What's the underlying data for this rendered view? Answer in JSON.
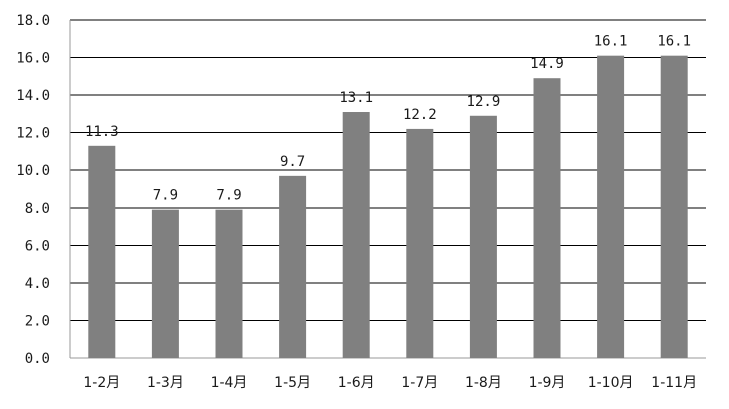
{
  "chart_data": {
    "type": "bar",
    "categories": [
      "1-2月",
      "1-3月",
      "1-4月",
      "1-5月",
      "1-6月",
      "1-7月",
      "1-8月",
      "1-9月",
      "1-10月",
      "1-11月"
    ],
    "values": [
      11.3,
      7.9,
      7.9,
      9.7,
      13.1,
      12.2,
      12.9,
      14.9,
      16.1,
      16.1
    ],
    "data_labels": [
      "11.3",
      "7.9",
      "7.9",
      "9.7",
      "13.1",
      "12.2",
      "12.9",
      "14.9",
      "16.1",
      "16.1"
    ],
    "y_ticks": [
      "0.0",
      "2.0",
      "4.0",
      "6.0",
      "8.0",
      "10.0",
      "12.0",
      "14.0",
      "16.0",
      "18.0"
    ],
    "ylim": [
      0,
      18
    ],
    "grid": true,
    "legend": "none",
    "colors": {
      "bar": "#808080",
      "grid": "#000000",
      "axis": "#999999",
      "text": "#1a1a1a"
    }
  }
}
